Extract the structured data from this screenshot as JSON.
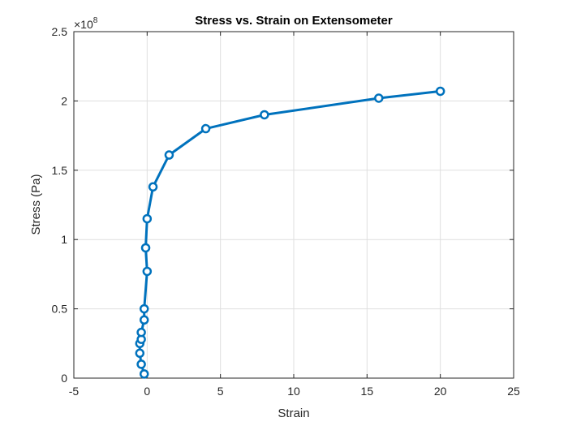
{
  "chart_data": {
    "type": "line",
    "title": "Stress vs. Strain on Extensometer",
    "xlabel": "Strain",
    "ylabel": "Stress (Pa)",
    "xlim": [
      -5,
      25
    ],
    "ylim": [
      0,
      2.5
    ],
    "y_multiplier": "×10",
    "y_exponent": "8",
    "grid": true,
    "x_ticks": [
      "-5",
      "0",
      "5",
      "10",
      "15",
      "20",
      "25"
    ],
    "y_ticks": [
      "0",
      "0.5",
      "1",
      "1.5",
      "2",
      "2.5"
    ],
    "line_color": "#0072BD",
    "marker": "circle",
    "series": [
      {
        "x": [
          -0.2,
          -0.4,
          -0.5,
          -0.5,
          -0.4,
          -0.4,
          -0.2,
          -0.2,
          0.0,
          -0.1,
          0.0,
          0.4,
          1.5,
          4.0,
          8.0,
          15.8,
          20.0
        ],
        "y": [
          0.03,
          0.1,
          0.18,
          0.25,
          0.28,
          0.33,
          0.42,
          0.5,
          0.77,
          0.94,
          1.15,
          1.38,
          1.61,
          1.8,
          1.9,
          2.02,
          2.07
        ]
      }
    ]
  }
}
